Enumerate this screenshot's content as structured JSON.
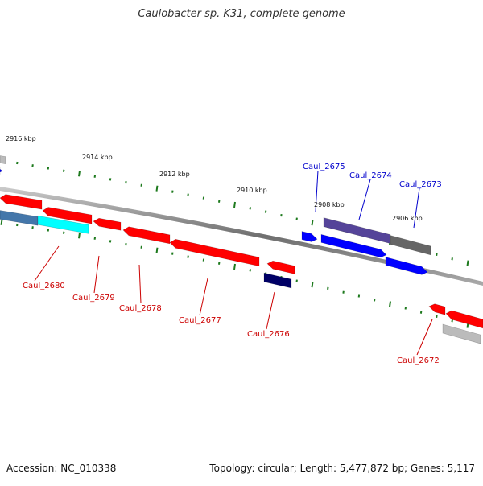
{
  "title": "Caulobacter sp. K31, complete genome",
  "footer": {
    "accession": "Accession: NC_010338",
    "stats": "Topology: circular; Length: 5,477,872 bp; Genes: 5,117"
  },
  "colors": {
    "backbone": "#777777",
    "tick": "#1e7a1e",
    "label_minus": "#cc0000",
    "label_plus": "#0000cc",
    "red": "#ff0000",
    "blue": "#0000ff",
    "navy": "#000066",
    "cyan": "#00ffff",
    "steel": "#4477aa",
    "purple": "#554499",
    "gray": "#666666",
    "lightgray": "#bbbbbb"
  },
  "scale_labels": [
    "2916 kbp",
    "2914 kbp",
    "2912 kbp",
    "2910 kbp",
    "2908 kbp",
    "2906 kbp"
  ],
  "gene_labels_plus": [
    "Caul_2675",
    "Caul_2674",
    "Caul_2673"
  ],
  "gene_labels_minus": [
    "Caul_2680",
    "Caul_2679",
    "Caul_2678",
    "Caul_2677",
    "Caul_2676",
    "Caul_2672"
  ]
}
